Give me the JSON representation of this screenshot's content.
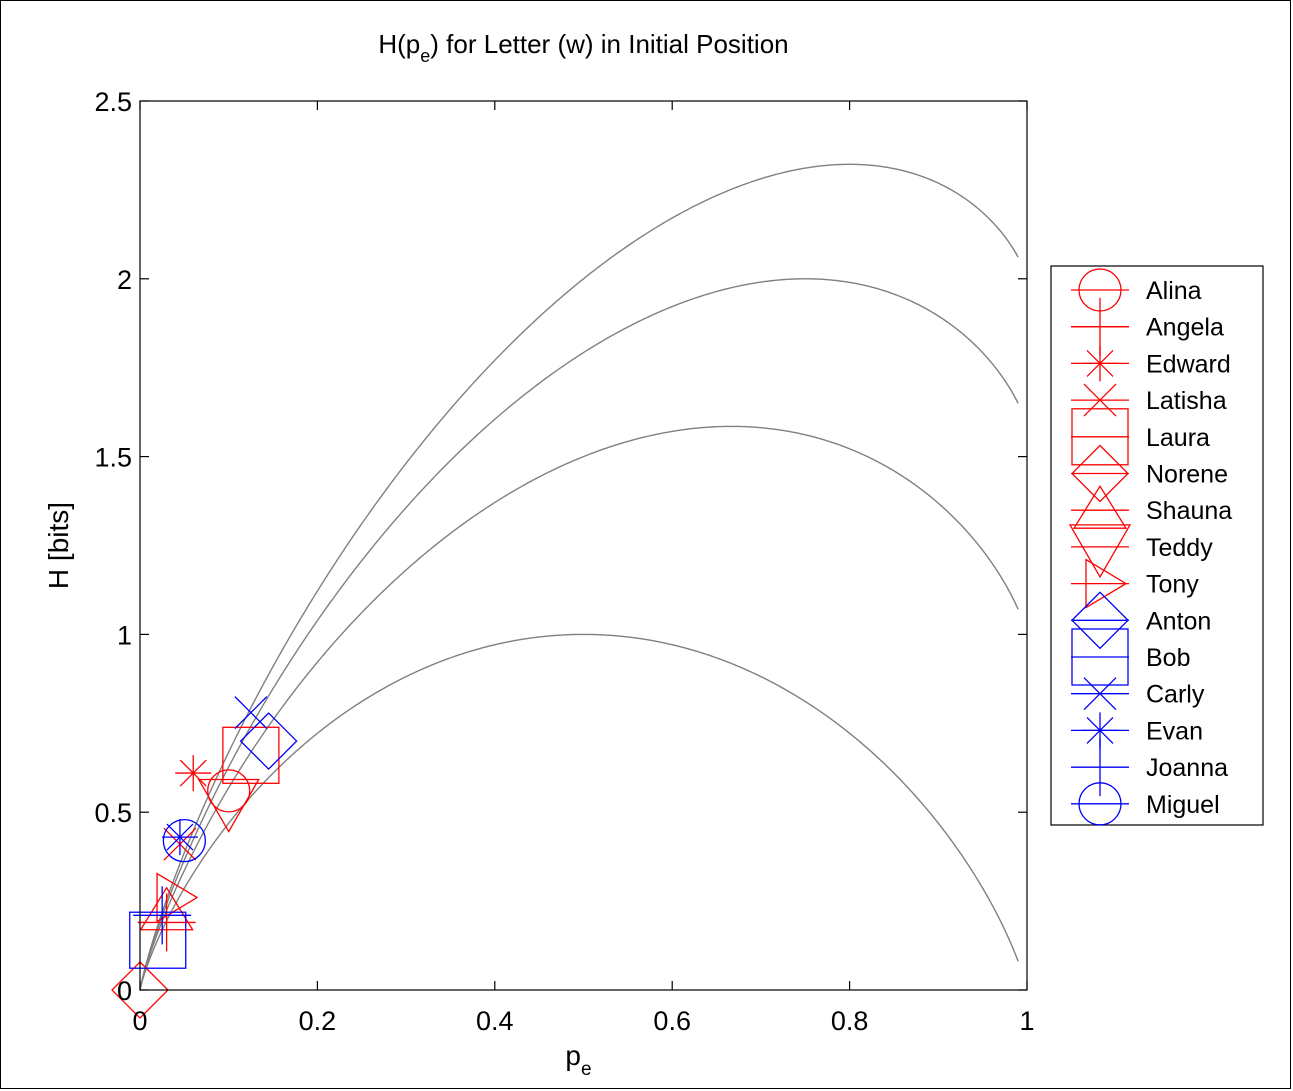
{
  "chart_data": {
    "type": "scatter",
    "title": {
      "main": "H(p",
      "sub": "e",
      "rest": ") for Letter (w) in Initial Position"
    },
    "xlabel": {
      "main": "p",
      "sub": "e"
    },
    "ylabel": "H [bits]",
    "xlim": [
      0,
      1
    ],
    "ylim": [
      0,
      2.5
    ],
    "xticks": [
      0,
      0.2,
      0.4,
      0.6,
      0.8,
      1
    ],
    "xtick_labels": [
      "0",
      "0.2",
      "0.4",
      "0.6",
      "0.8",
      "1"
    ],
    "yticks": [
      0,
      0.5,
      1,
      1.5,
      2,
      2.5
    ],
    "ytick_labels": [
      "0",
      "0.5",
      "1",
      "1.5",
      "2",
      "2.5"
    ],
    "grid": false,
    "legend_position": "outside-right",
    "colors": {
      "red": "#ff0000",
      "blue": "#0000ff",
      "curve": "#808080"
    },
    "curves": [
      {
        "alternatives": 2
      },
      {
        "alternatives": 3
      },
      {
        "alternatives": 4
      },
      {
        "alternatives": 5
      }
    ],
    "series": [
      {
        "name": "Alina",
        "marker": "circle",
        "color": "red",
        "x": 0.1,
        "y": 0.56
      },
      {
        "name": "Angela",
        "marker": "plus",
        "color": "red",
        "x": 0.03,
        "y": 0.19
      },
      {
        "name": "Edward",
        "marker": "asterisk",
        "color": "red",
        "x": 0.06,
        "y": 0.61
      },
      {
        "name": "Latisha",
        "marker": "x",
        "color": "red",
        "x": 0.045,
        "y": 0.41
      },
      {
        "name": "Laura",
        "marker": "square",
        "color": "red",
        "x": 0.125,
        "y": 0.66
      },
      {
        "name": "Norene",
        "marker": "diamond",
        "color": "red",
        "x": 0.0,
        "y": 0.0
      },
      {
        "name": "Shauna",
        "marker": "triangle-up",
        "color": "red",
        "x": 0.03,
        "y": 0.22
      },
      {
        "name": "Teddy",
        "marker": "triangle-down",
        "color": "red",
        "x": 0.1,
        "y": 0.53
      },
      {
        "name": "Tony",
        "marker": "triangle-right",
        "color": "red",
        "x": 0.035,
        "y": 0.26
      },
      {
        "name": "Anton",
        "marker": "diamond",
        "color": "blue",
        "x": 0.145,
        "y": 0.7
      },
      {
        "name": "Bob",
        "marker": "square",
        "color": "blue",
        "x": 0.02,
        "y": 0.14
      },
      {
        "name": "Carly",
        "marker": "x",
        "color": "blue",
        "x": 0.125,
        "y": 0.78
      },
      {
        "name": "Evan",
        "marker": "asterisk",
        "color": "blue",
        "x": 0.045,
        "y": 0.43
      },
      {
        "name": "Joanna",
        "marker": "plus",
        "color": "blue",
        "x": 0.025,
        "y": 0.21
      },
      {
        "name": "Miguel",
        "marker": "circle",
        "color": "blue",
        "x": 0.05,
        "y": 0.42
      }
    ]
  }
}
